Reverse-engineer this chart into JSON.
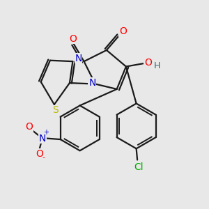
{
  "bg_color": "#e8e8e8",
  "bond_color": "#1a1a1a",
  "atoms": {
    "N": {
      "color": "#0000cc"
    },
    "O": {
      "color": "#ff0000"
    },
    "S": {
      "color": "#bbbb00"
    },
    "Cl": {
      "color": "#00aa00"
    },
    "H": {
      "color": "#336666"
    }
  },
  "lw": 1.6,
  "lw_inner": 1.4
}
